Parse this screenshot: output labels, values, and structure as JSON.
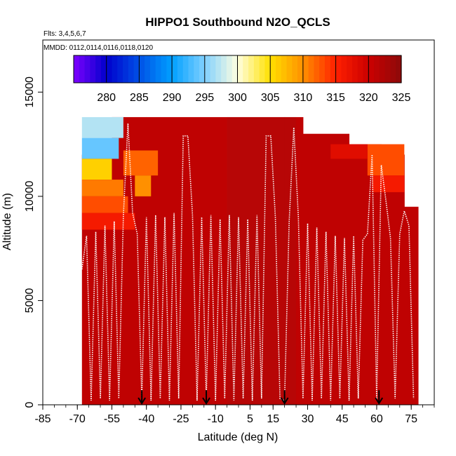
{
  "chart_data": {
    "type": "heatmap",
    "title": "HIPPO1 Southbound N2O_QCLS",
    "subtitle_flights": "Flts: 3,4,5,6,7",
    "subtitle_dates": "MMDD: 0112,0114,0116,0118,0120",
    "xlabel": "Latitude (deg N)",
    "ylabel": "Altitude (m)",
    "xlim": [
      -85,
      85
    ],
    "ylim": [
      0,
      17500
    ],
    "x_ticks": [
      -85,
      -70,
      -55,
      -40,
      -25,
      -10,
      5,
      15,
      30,
      45,
      60,
      75
    ],
    "y_ticks": [
      0,
      5000,
      10000,
      15000
    ],
    "colorbar": {
      "min": 275,
      "max": 325,
      "ticks": [
        280,
        285,
        290,
        295,
        300,
        305,
        310,
        315,
        320,
        325
      ],
      "colors": [
        "#7f00ff",
        "#0000cc",
        "#0050e6",
        "#00a0ff",
        "#80d0ff",
        "#ffffe0",
        "#ffe000",
        "#ff9000",
        "#ff2000",
        "#cc0000",
        "#8c0a0a"
      ]
    },
    "flight_markers_lat": [
      -42,
      -14,
      20,
      61
    ],
    "data_region": {
      "background_value": 321,
      "columns": [
        {
          "lat0": -68,
          "lat1": -55,
          "top": 12000
        },
        {
          "lat0": -55,
          "lat1": -40,
          "top": 13800
        },
        {
          "lat0": -40,
          "lat1": 20,
          "top": 13800
        },
        {
          "lat0": 20,
          "lat1": 28,
          "top": 13800
        },
        {
          "lat0": 28,
          "lat1": 48,
          "top": 13000
        },
        {
          "lat0": 48,
          "lat1": 62,
          "top": 12500
        },
        {
          "lat0": 62,
          "lat1": 72,
          "top": 12000
        },
        {
          "lat0": 72,
          "lat1": 78,
          "top": 9500
        }
      ],
      "layers": [
        {
          "lat0": -68,
          "lat1": -50,
          "alt0": 12800,
          "alt1": 13800,
          "value": 297
        },
        {
          "lat0": -68,
          "lat1": -52,
          "alt0": 11800,
          "alt1": 12800,
          "value": 294
        },
        {
          "lat0": -68,
          "lat1": -55,
          "alt0": 10800,
          "alt1": 11800,
          "value": 306
        },
        {
          "lat0": -68,
          "lat1": -50,
          "alt0": 10000,
          "alt1": 10800,
          "value": 311
        },
        {
          "lat0": -68,
          "lat1": -48,
          "alt0": 9200,
          "alt1": 10000,
          "value": 313
        },
        {
          "lat0": -68,
          "lat1": -45,
          "alt0": 8400,
          "alt1": 9200,
          "value": 316
        },
        {
          "lat0": -50,
          "lat1": -35,
          "alt0": 11000,
          "alt1": 12200,
          "value": 312
        },
        {
          "lat0": -45,
          "lat1": -38,
          "alt0": 10000,
          "alt1": 11000,
          "value": 310
        },
        {
          "lat0": 56,
          "lat1": 72,
          "alt0": 11000,
          "alt1": 12500,
          "value": 313
        },
        {
          "lat0": 58,
          "lat1": 72,
          "alt0": 10200,
          "alt1": 11000,
          "value": 316
        },
        {
          "lat0": 40,
          "lat1": 56,
          "alt0": 11800,
          "alt1": 12500,
          "value": 318
        }
      ]
    },
    "flight_tracks": [
      {
        "lat": [
          -68,
          -66,
          -64,
          -62,
          -60,
          -58,
          -56,
          -54,
          -52,
          -50,
          -48,
          -46,
          -44,
          -42
        ],
        "alt": [
          6500,
          8100,
          200,
          8300,
          300,
          8600,
          200,
          8800,
          300,
          9100,
          13500,
          9200,
          8200,
          300
        ]
      },
      {
        "lat": [
          -42,
          -40,
          -38,
          -36,
          -34,
          -32,
          -30,
          -28,
          -26,
          -24,
          -22,
          -20,
          -18,
          -16,
          -14
        ],
        "alt": [
          300,
          9000,
          200,
          9100,
          300,
          9000,
          200,
          9200,
          300,
          12900,
          12900,
          9100,
          200,
          9000,
          300
        ]
      },
      {
        "lat": [
          -14,
          -12,
          -10,
          -8,
          -6,
          -4,
          -2,
          0,
          2,
          4,
          6,
          8,
          10,
          12,
          14,
          16,
          18,
          20
        ],
        "alt": [
          300,
          9100,
          200,
          8900,
          300,
          9100,
          200,
          9000,
          300,
          8900,
          200,
          9100,
          300,
          12900,
          12900,
          9000,
          300,
          200
        ]
      },
      {
        "lat": [
          20,
          22,
          24,
          26,
          28,
          30,
          32,
          34,
          36,
          38,
          40,
          42,
          44,
          46,
          48,
          50,
          52,
          54,
          56,
          58,
          60
        ],
        "alt": [
          200,
          8800,
          13300,
          9000,
          300,
          8700,
          200,
          8500,
          300,
          8300,
          200,
          8100,
          300,
          8000,
          200,
          8100,
          300,
          7900,
          8200,
          12000,
          300
        ]
      },
      {
        "lat": [
          60,
          62,
          64,
          66,
          68,
          70,
          72,
          74,
          76
        ],
        "alt": [
          300,
          11500,
          9800,
          8000,
          300,
          8200,
          9300,
          8600,
          300
        ]
      }
    ]
  }
}
